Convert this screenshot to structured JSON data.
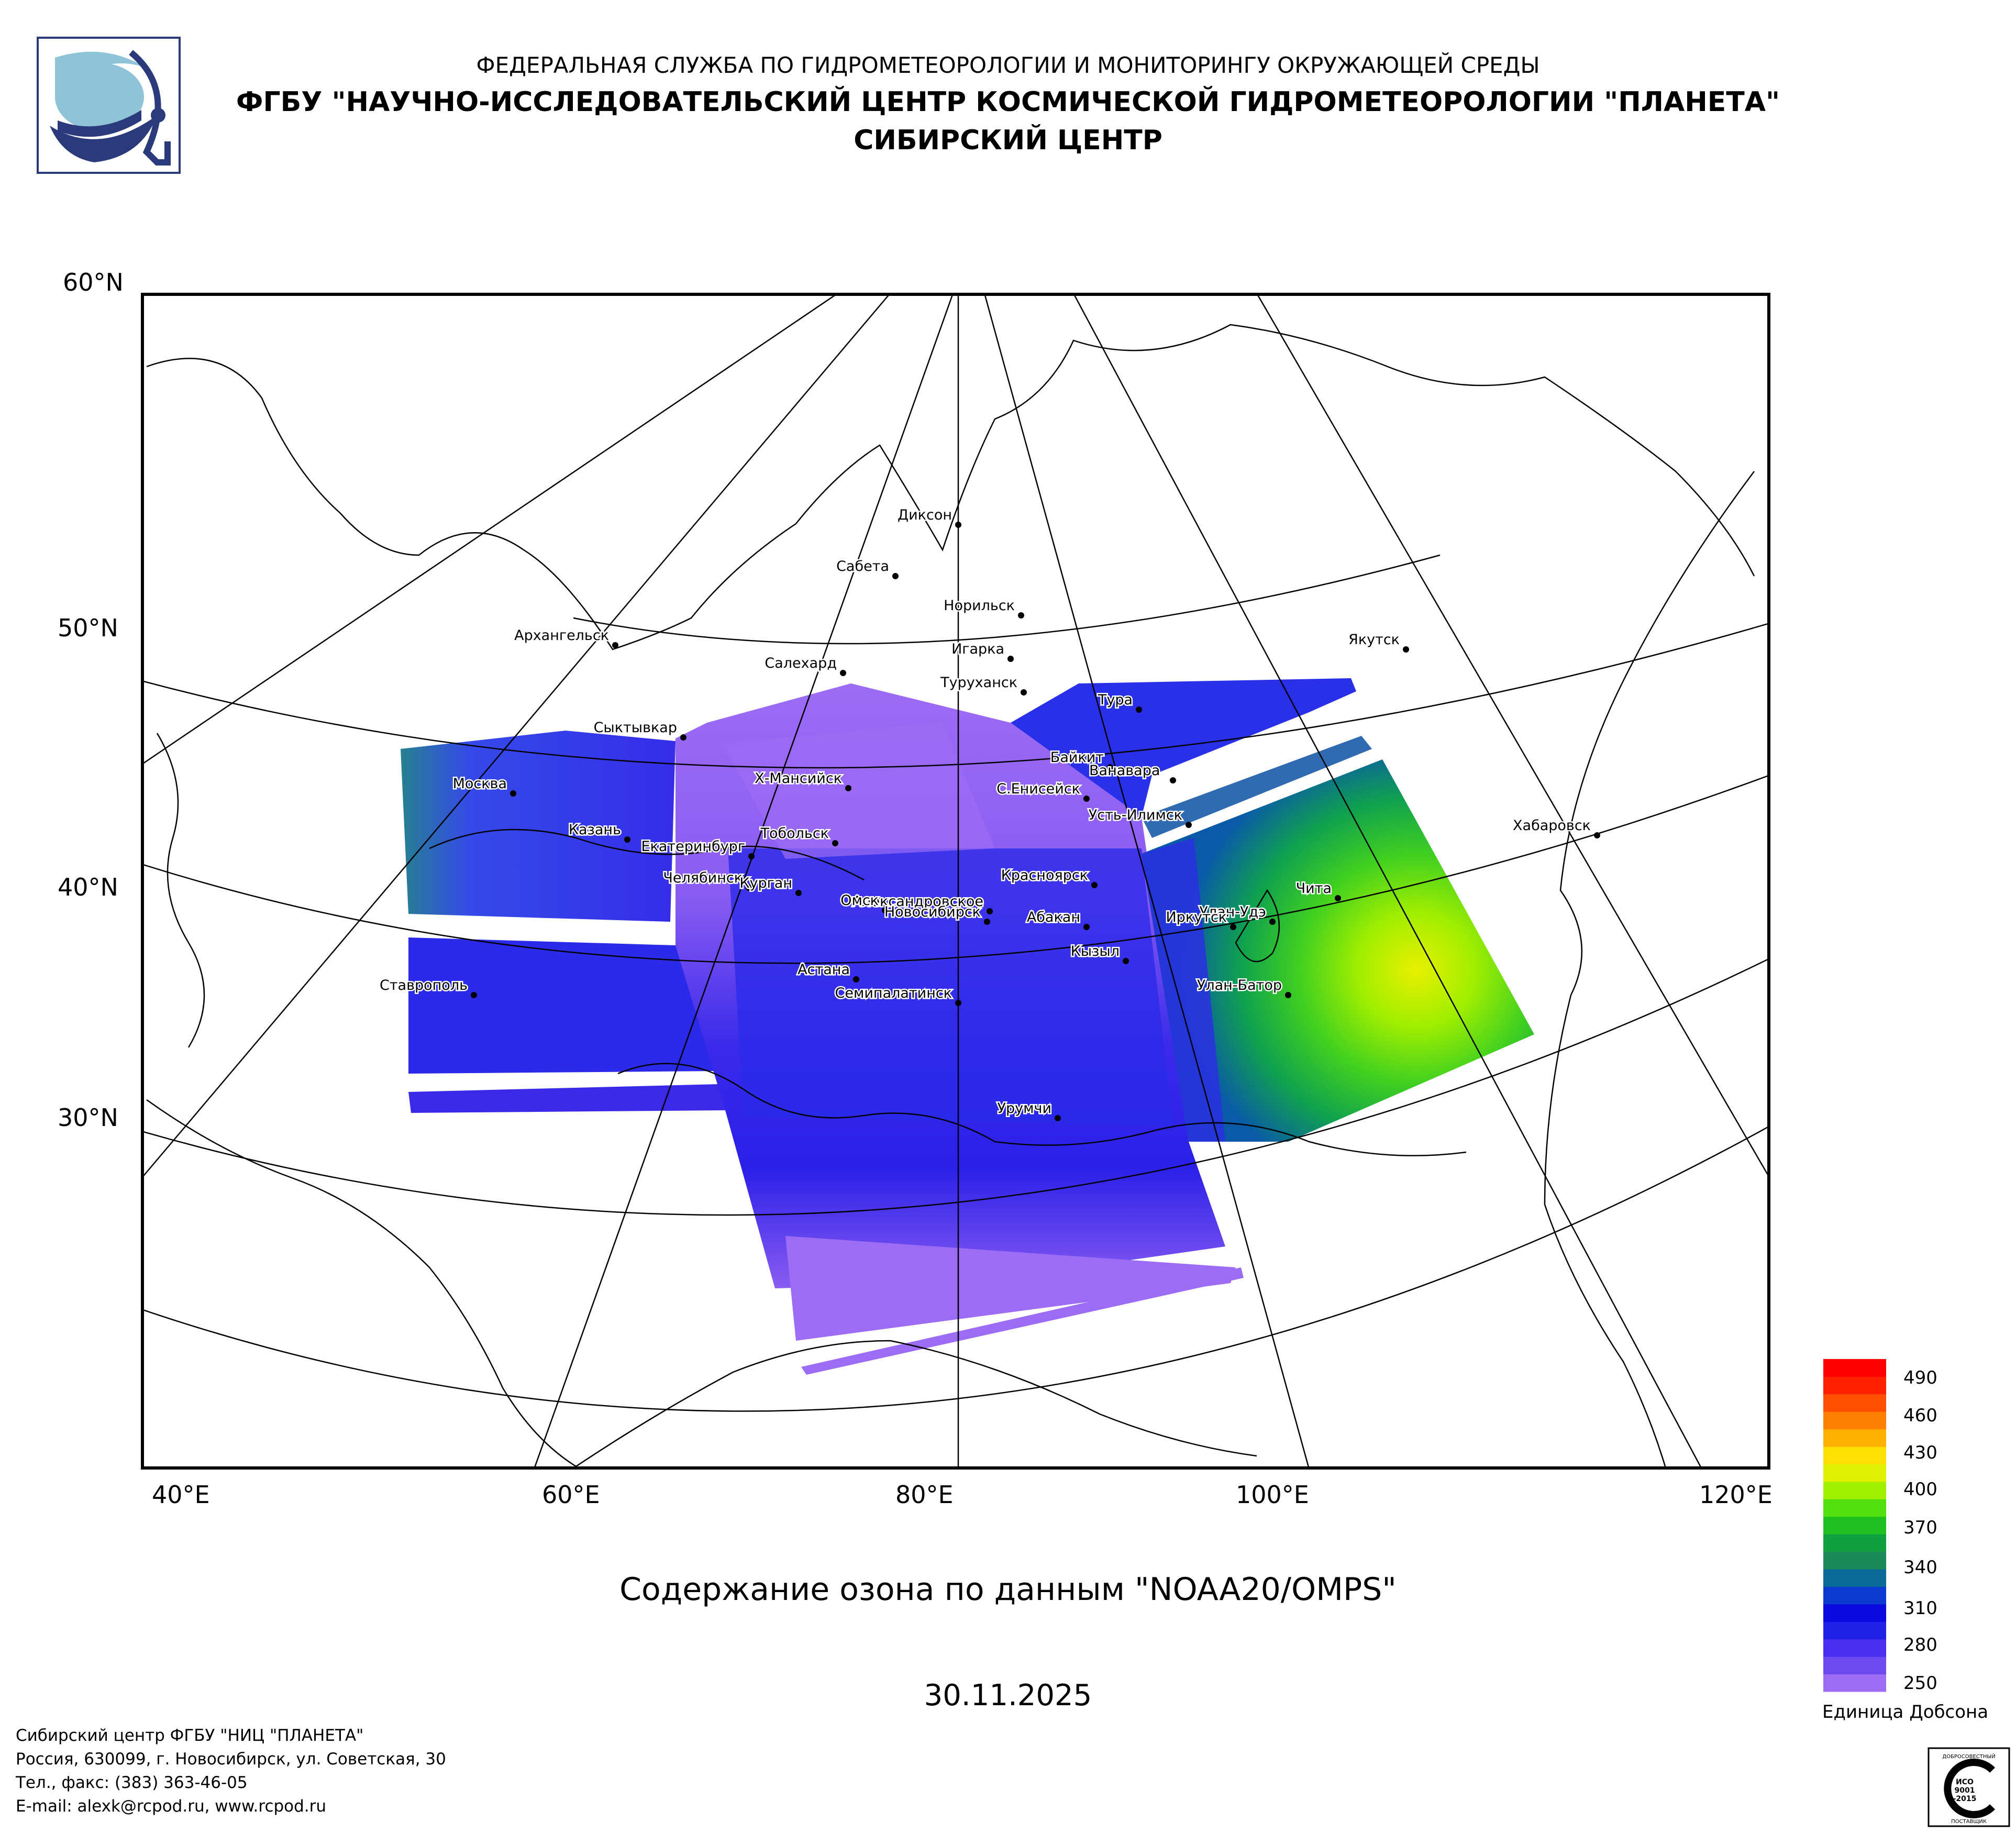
{
  "header": {
    "line1": "ФЕДЕРАЛЬНАЯ СЛУЖБА ПО ГИДРОМЕТЕОРОЛОГИИ И МОНИТОРИНГУ ОКРУЖАЮЩЕЙ СРЕДЫ",
    "line2": "ФГБУ \"НАУЧНО-ИССЛЕДОВАТЕЛЬСКИЙ ЦЕНТР КОСМИЧЕСКОЙ ГИДРОМЕТЕОРОЛОГИИ \"ПЛАНЕТА\"",
    "line3": "СИБИРСКИЙ ЦЕНТР"
  },
  "axes": {
    "lat_labels": [
      "60°N",
      "50°N",
      "40°N",
      "30°N"
    ],
    "lon_labels": [
      "40°E",
      "60°E",
      "80°E",
      "100°E",
      "120°E"
    ]
  },
  "cities": [
    {
      "name": "Диксон"
    },
    {
      "name": "Сабета"
    },
    {
      "name": "Норильск"
    },
    {
      "name": "Игарка"
    },
    {
      "name": "Салехард"
    },
    {
      "name": "Туруханск"
    },
    {
      "name": "Якутск"
    },
    {
      "name": "Архангельск"
    },
    {
      "name": "Тура"
    },
    {
      "name": "Сыктывкар"
    },
    {
      "name": "Байкит"
    },
    {
      "name": "Ванавара"
    },
    {
      "name": "Х-Мансийск"
    },
    {
      "name": "С.Енисейск"
    },
    {
      "name": "Москва"
    },
    {
      "name": "Усть-Илимск"
    },
    {
      "name": "Хабаровск"
    },
    {
      "name": "Казань"
    },
    {
      "name": "Тобольск"
    },
    {
      "name": "Екатеринбург"
    },
    {
      "name": "Красноярск"
    },
    {
      "name": "Челябинск"
    },
    {
      "name": "Чита"
    },
    {
      "name": "Александровское"
    },
    {
      "name": "Курган"
    },
    {
      "name": "Омск"
    },
    {
      "name": "Улан-Удэ"
    },
    {
      "name": "Новосибирск"
    },
    {
      "name": "Абакан"
    },
    {
      "name": "Иркутск"
    },
    {
      "name": "Кызыл"
    },
    {
      "name": "Астана"
    },
    {
      "name": "Ставрополь"
    },
    {
      "name": "Улан-Батор"
    },
    {
      "name": "Семипалатинск"
    },
    {
      "name": "Урумчи"
    }
  ],
  "caption": "Содержание озона по данным \"NOAA20/OMPS\"",
  "date": "30.11.2025",
  "footer": {
    "line1": "Сибирский центр ФГБУ \"НИЦ \"ПЛАНЕТА\"",
    "line2": "Россия, 630099, г. Новосибирск, ул. Советская, 30",
    "line3": "Тел., факс: (383) 363-46-05",
    "line4": "E-mail: alexk@rcpod.ru, www.rcpod.ru"
  },
  "legend": {
    "ticks": [
      "490",
      "460",
      "430",
      "400",
      "370",
      "340",
      "310",
      "280",
      "250"
    ],
    "unit": "Единица Добсона",
    "color_stops": [
      "#9d6cf4",
      "#6d4af0",
      "#4a2ff0",
      "#2020e8",
      "#0a0ae0",
      "#0a3ad0",
      "#0a6a9a",
      "#1a8a5a",
      "#10a040",
      "#20c020",
      "#50e010",
      "#a0f000",
      "#e0f000",
      "#ffe000",
      "#ffb000",
      "#ff8000",
      "#ff5000",
      "#ff2000",
      "#ff0000"
    ]
  },
  "badge": {
    "top": "ДОБРОСОВЕСТНЫЙ",
    "mid1": "ИСО",
    "mid2": "9001",
    "mid3": "-2015",
    "bottom": "ПОСТАВЩИК"
  }
}
